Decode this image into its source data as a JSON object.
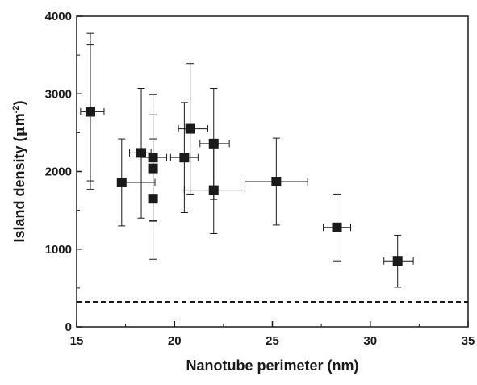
{
  "chart_data": {
    "type": "scatter",
    "xlabel": "Nanotube perimeter (nm)",
    "ylabel": {
      "prefix": "Island density (",
      "unit_greek": "μ",
      "unit_base": "m",
      "unit_sup": "-2",
      "suffix": ")"
    },
    "xlim": [
      15,
      35
    ],
    "ylim": [
      0,
      4000
    ],
    "xticks": [
      15,
      20,
      25,
      30,
      35
    ],
    "yticks": [
      0,
      1000,
      2000,
      3000,
      4000
    ],
    "grid": false,
    "legend": "none",
    "marker": "filled-square",
    "color": "#1a1a1a",
    "points": [
      {
        "x": 15.7,
        "y": 2770,
        "xerr": [
          15.2,
          16.4
        ],
        "yerr": [
          1880,
          3630
        ]
      },
      {
        "x": 15.7,
        "y": 2770,
        "xerr": [
          15.7,
          15.7
        ],
        "yerr": [
          1770,
          3780
        ]
      },
      {
        "x": 17.3,
        "y": 1860,
        "xerr": [
          17.3,
          19.0
        ],
        "yerr": [
          1300,
          2420
        ]
      },
      {
        "x": 18.3,
        "y": 2240,
        "xerr": [
          17.7,
          18.8
        ],
        "yerr": [
          1400,
          3070
        ]
      },
      {
        "x": 18.9,
        "y": 2180,
        "xerr": [
          18.3,
          19.6
        ],
        "yerr": [
          1370,
          2990
        ]
      },
      {
        "x": 18.9,
        "y": 2040,
        "xerr": [
          18.9,
          18.9
        ],
        "yerr": [
          1360,
          2730
        ]
      },
      {
        "x": 18.9,
        "y": 1650,
        "xerr": [
          18.9,
          18.9
        ],
        "yerr": [
          870,
          2420
        ]
      },
      {
        "x": 20.5,
        "y": 2180,
        "xerr": [
          19.8,
          21.2
        ],
        "yerr": [
          1470,
          2890
        ]
      },
      {
        "x": 20.8,
        "y": 2550,
        "xerr": [
          20.2,
          21.7
        ],
        "yerr": [
          1710,
          3390
        ]
      },
      {
        "x": 22.0,
        "y": 2360,
        "xerr": [
          21.3,
          22.8
        ],
        "yerr": [
          1640,
          3070
        ]
      },
      {
        "x": 22.0,
        "y": 1760,
        "xerr": [
          20.5,
          23.6
        ],
        "yerr": [
          1200,
          2320
        ]
      },
      {
        "x": 25.2,
        "y": 1870,
        "xerr": [
          23.6,
          26.8
        ],
        "yerr": [
          1310,
          2430
        ]
      },
      {
        "x": 28.3,
        "y": 1280,
        "xerr": [
          27.6,
          29.0
        ],
        "yerr": [
          850,
          1710
        ]
      },
      {
        "x": 31.4,
        "y": 850,
        "xerr": [
          30.7,
          32.2
        ],
        "yerr": [
          510,
          1180
        ]
      }
    ],
    "reference_line": {
      "y": 320,
      "style": "dashed"
    }
  }
}
